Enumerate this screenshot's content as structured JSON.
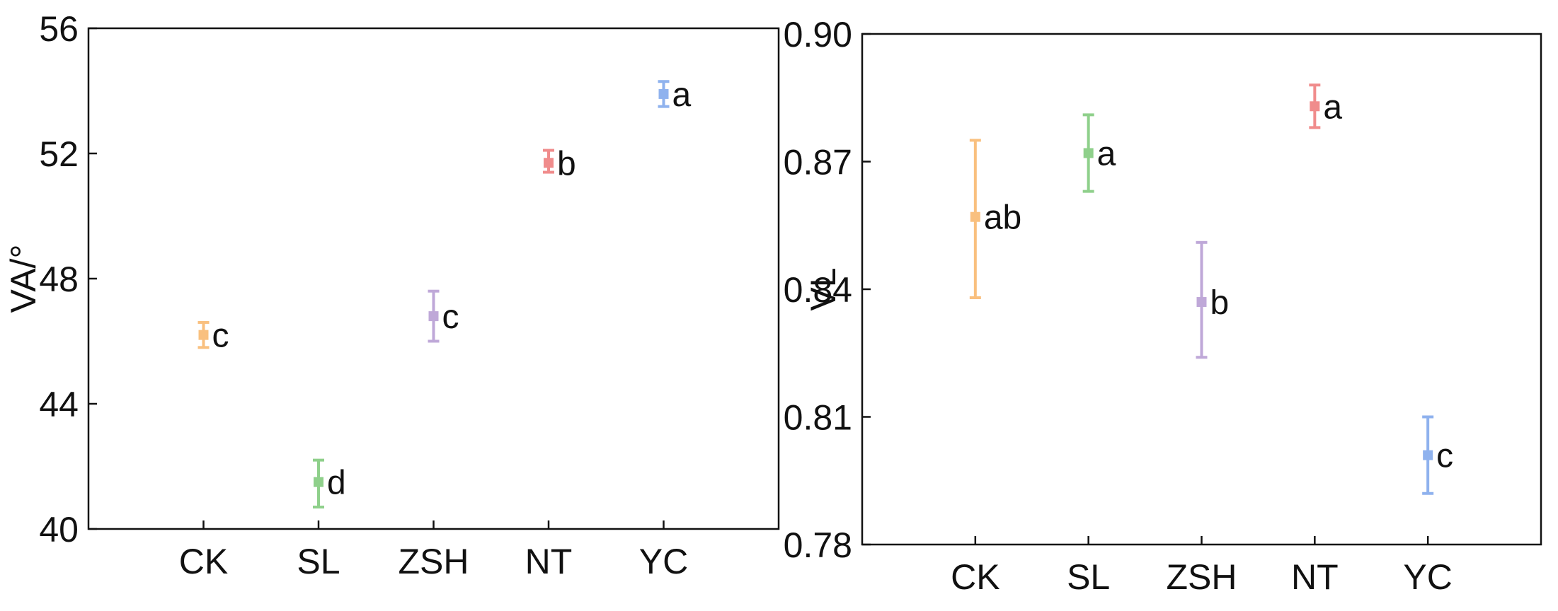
{
  "chart_data": [
    {
      "type": "scatter",
      "title": "",
      "xlabel": "",
      "ylabel": "VA/°",
      "categories": [
        "CK",
        "SL",
        "ZSH",
        "NT",
        "YC"
      ],
      "colors": [
        "#f9c07f",
        "#8fd08b",
        "#bfa8d8",
        "#f08c8c",
        "#8fb2ee"
      ],
      "values": [
        46.2,
        41.5,
        46.8,
        51.7,
        53.9
      ],
      "err_low": [
        45.8,
        40.7,
        46.0,
        51.4,
        53.5
      ],
      "err_high": [
        46.6,
        42.2,
        47.6,
        52.1,
        54.3
      ],
      "labels": [
        "c",
        "d",
        "c",
        "b",
        "a"
      ],
      "ylim": [
        40,
        56
      ],
      "yticks": [
        40,
        44,
        48,
        52,
        56
      ],
      "ytick_labels": [
        "40",
        "44",
        "48",
        "52",
        "56"
      ],
      "grid": false,
      "legend": "none"
    },
    {
      "type": "scatter",
      "title": "",
      "xlabel": "",
      "ylabel": "VL",
      "categories": [
        "CK",
        "SL",
        "ZSH",
        "NT",
        "YC"
      ],
      "colors": [
        "#f9c07f",
        "#8fd08b",
        "#bfa8d8",
        "#f08c8c",
        "#8fb2ee"
      ],
      "values": [
        0.857,
        0.872,
        0.837,
        0.883,
        0.801
      ],
      "err_low": [
        0.838,
        0.863,
        0.824,
        0.878,
        0.792
      ],
      "err_high": [
        0.875,
        0.881,
        0.851,
        0.888,
        0.81
      ],
      "labels": [
        "ab",
        "a",
        "b",
        "a",
        "c"
      ],
      "ylim": [
        0.78,
        0.9
      ],
      "yticks": [
        0.78,
        0.81,
        0.84,
        0.87,
        0.9
      ],
      "ytick_labels": [
        "0.78",
        "0.81",
        "0.84",
        "0.87",
        "0.90"
      ],
      "grid": false,
      "legend": "none"
    }
  ]
}
